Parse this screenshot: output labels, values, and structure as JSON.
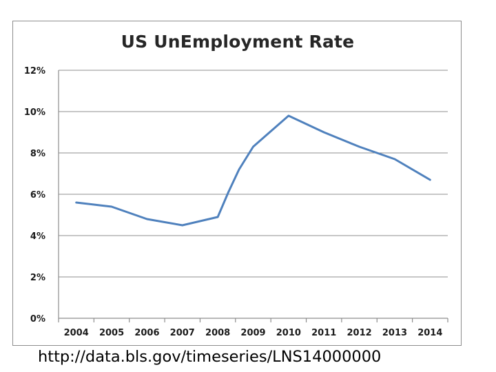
{
  "chart_data": {
    "type": "line",
    "title": "US UnEmployment Rate",
    "xlabel": "",
    "ylabel": "",
    "categories": [
      "2004",
      "2005",
      "2006",
      "2007",
      "2008",
      "2009",
      "2010",
      "2011",
      "2012",
      "2013",
      "2014"
    ],
    "y_ticks": [
      "0%",
      "2%",
      "4%",
      "6%",
      "8%",
      "10%",
      "12%"
    ],
    "ylim": [
      0,
      12
    ],
    "grid": true,
    "legend": "none",
    "series": [
      {
        "color": "#4f81bd",
        "points": [
          {
            "x": 2004.0,
            "y": 5.6
          },
          {
            "x": 2004.5,
            "y": 5.5
          },
          {
            "x": 2005.0,
            "y": 5.4
          },
          {
            "x": 2006.0,
            "y": 4.8
          },
          {
            "x": 2006.5,
            "y": 4.65
          },
          {
            "x": 2007.0,
            "y": 4.5
          },
          {
            "x": 2008.0,
            "y": 4.9
          },
          {
            "x": 2008.3,
            "y": 6.1
          },
          {
            "x": 2008.6,
            "y": 7.2
          },
          {
            "x": 2009.0,
            "y": 8.3
          },
          {
            "x": 2010.0,
            "y": 9.8
          },
          {
            "x": 2011.0,
            "y": 9.0
          },
          {
            "x": 2012.0,
            "y": 8.3
          },
          {
            "x": 2013.0,
            "y": 7.7
          },
          {
            "x": 2014.0,
            "y": 6.7
          }
        ]
      }
    ]
  },
  "footer": {
    "source": "http://data.bls.gov/timeseries/LNS14000000"
  }
}
